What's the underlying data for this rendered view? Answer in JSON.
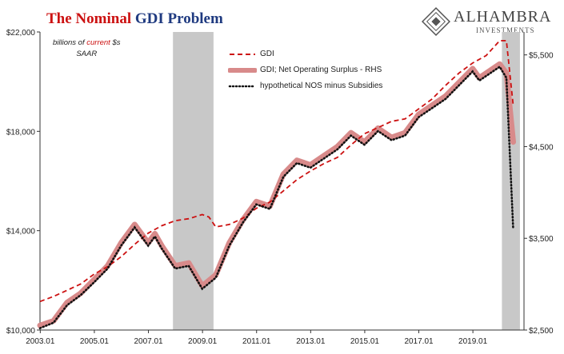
{
  "title": {
    "part1": "The Nominal",
    "part2": "GDI Problem"
  },
  "units": {
    "line1_a": "billions of",
    "line1_b": "current",
    "line1_c": "$s",
    "line2": "SAAR"
  },
  "logo": {
    "name": "ALHAMBRA",
    "sub": "INVESTMENTS"
  },
  "chart_data": {
    "type": "line",
    "x_ticks": [
      "2003.01",
      "2005.01",
      "2007.01",
      "2009.01",
      "2011.01",
      "2013.01",
      "2015.01",
      "2017.01",
      "2019.01"
    ],
    "left_axis": {
      "ticks": [
        "$10,000",
        "$14,000",
        "$18,000",
        "$22,000"
      ],
      "range": [
        10000,
        22000
      ]
    },
    "right_axis": {
      "ticks": [
        "$2,500",
        "$3,500",
        "$4,500",
        "$5,500"
      ],
      "range": [
        2500,
        5750
      ]
    },
    "recessions": [
      [
        2007.917,
        2009.417
      ],
      [
        2020.083,
        2020.75
      ]
    ],
    "series": [
      {
        "name": "GDI",
        "axis": "left",
        "color": "#cc1111",
        "style": "dashed",
        "points": [
          [
            2003.0,
            11150
          ],
          [
            2003.5,
            11350
          ],
          [
            2004.0,
            11600
          ],
          [
            2004.5,
            11850
          ],
          [
            2005.0,
            12250
          ],
          [
            2005.5,
            12550
          ],
          [
            2006.0,
            12950
          ],
          [
            2006.5,
            13450
          ],
          [
            2007.0,
            13900
          ],
          [
            2007.5,
            14200
          ],
          [
            2008.0,
            14400
          ],
          [
            2008.5,
            14480
          ],
          [
            2009.0,
            14650
          ],
          [
            2009.25,
            14550
          ],
          [
            2009.5,
            14150
          ],
          [
            2010.0,
            14250
          ],
          [
            2010.5,
            14500
          ],
          [
            2011.0,
            14900
          ],
          [
            2011.5,
            15150
          ],
          [
            2012.0,
            15600
          ],
          [
            2012.5,
            16050
          ],
          [
            2013.0,
            16400
          ],
          [
            2013.5,
            16700
          ],
          [
            2014.0,
            16950
          ],
          [
            2014.5,
            17450
          ],
          [
            2015.0,
            17900
          ],
          [
            2015.5,
            18150
          ],
          [
            2016.0,
            18400
          ],
          [
            2016.5,
            18500
          ],
          [
            2017.0,
            18900
          ],
          [
            2017.5,
            19300
          ],
          [
            2018.0,
            19850
          ],
          [
            2018.5,
            20350
          ],
          [
            2019.0,
            20750
          ],
          [
            2019.5,
            21050
          ],
          [
            2020.0,
            21650
          ],
          [
            2020.25,
            21650
          ],
          [
            2020.5,
            19050
          ]
        ]
      },
      {
        "name": "GDI; Net Operating Surplus - RHS",
        "axis": "right",
        "color": "#d88a8a",
        "style": "thick",
        "points": [
          [
            2003.0,
            2550
          ],
          [
            2003.5,
            2600
          ],
          [
            2004.0,
            2800
          ],
          [
            2004.5,
            2900
          ],
          [
            2005.0,
            3050
          ],
          [
            2005.5,
            3200
          ],
          [
            2006.0,
            3450
          ],
          [
            2006.5,
            3650
          ],
          [
            2007.0,
            3450
          ],
          [
            2007.25,
            3550
          ],
          [
            2007.5,
            3420
          ],
          [
            2008.0,
            3200
          ],
          [
            2008.5,
            3230
          ],
          [
            2009.0,
            2980
          ],
          [
            2009.5,
            3100
          ],
          [
            2010.0,
            3450
          ],
          [
            2010.5,
            3700
          ],
          [
            2011.0,
            3900
          ],
          [
            2011.5,
            3850
          ],
          [
            2012.0,
            4200
          ],
          [
            2012.5,
            4350
          ],
          [
            2013.0,
            4300
          ],
          [
            2013.5,
            4400
          ],
          [
            2014.0,
            4500
          ],
          [
            2014.5,
            4650
          ],
          [
            2015.0,
            4550
          ],
          [
            2015.5,
            4700
          ],
          [
            2016.0,
            4600
          ],
          [
            2016.5,
            4650
          ],
          [
            2017.0,
            4850
          ],
          [
            2017.5,
            4950
          ],
          [
            2018.0,
            5050
          ],
          [
            2018.5,
            5200
          ],
          [
            2019.0,
            5350
          ],
          [
            2019.25,
            5250
          ],
          [
            2019.5,
            5300
          ],
          [
            2020.0,
            5400
          ],
          [
            2020.25,
            5300
          ],
          [
            2020.5,
            4550
          ]
        ]
      },
      {
        "name": "hypothetical NOS minus Subsidies",
        "axis": "right",
        "color": "#111111",
        "style": "dotted",
        "points": [
          [
            2003.0,
            2520
          ],
          [
            2003.5,
            2580
          ],
          [
            2004.0,
            2770
          ],
          [
            2004.5,
            2880
          ],
          [
            2005.0,
            3020
          ],
          [
            2005.5,
            3170
          ],
          [
            2006.0,
            3420
          ],
          [
            2006.5,
            3620
          ],
          [
            2007.0,
            3420
          ],
          [
            2007.25,
            3520
          ],
          [
            2007.5,
            3390
          ],
          [
            2008.0,
            3170
          ],
          [
            2008.5,
            3200
          ],
          [
            2009.0,
            2950
          ],
          [
            2009.5,
            3070
          ],
          [
            2010.0,
            3420
          ],
          [
            2010.5,
            3670
          ],
          [
            2011.0,
            3870
          ],
          [
            2011.5,
            3820
          ],
          [
            2012.0,
            4170
          ],
          [
            2012.5,
            4320
          ],
          [
            2013.0,
            4270
          ],
          [
            2013.5,
            4370
          ],
          [
            2014.0,
            4470
          ],
          [
            2014.5,
            4620
          ],
          [
            2015.0,
            4520
          ],
          [
            2015.5,
            4670
          ],
          [
            2016.0,
            4570
          ],
          [
            2016.5,
            4620
          ],
          [
            2017.0,
            4820
          ],
          [
            2017.5,
            4920
          ],
          [
            2018.0,
            5020
          ],
          [
            2018.5,
            5170
          ],
          [
            2019.0,
            5320
          ],
          [
            2019.25,
            5220
          ],
          [
            2019.5,
            5270
          ],
          [
            2020.0,
            5370
          ],
          [
            2020.25,
            5250
          ],
          [
            2020.5,
            3600
          ]
        ]
      }
    ]
  }
}
